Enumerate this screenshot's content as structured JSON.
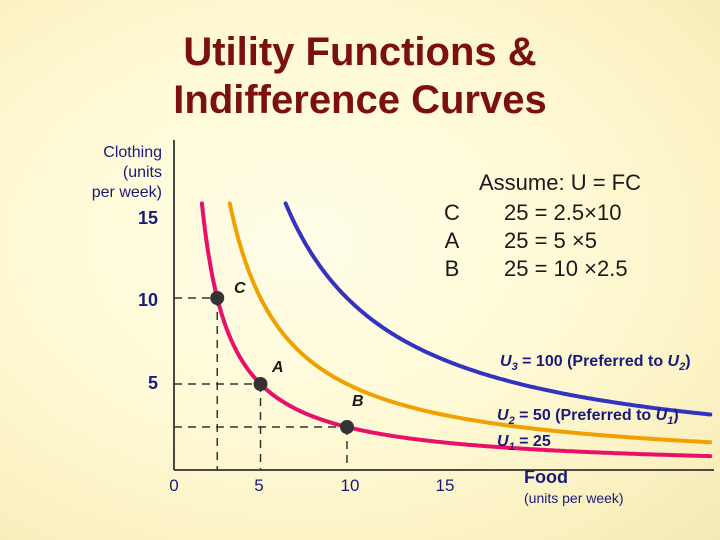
{
  "title": {
    "line1": "Utility Functions &",
    "line2": "Indifference Curves"
  },
  "axes": {
    "y_label": [
      "Clothing",
      "(units",
      "per week)"
    ],
    "x_label": "Food",
    "x_sublabel": "(units per week)",
    "y_ticks": [
      "15",
      "10",
      "5"
    ],
    "x_ticks": [
      "0",
      "5",
      "10",
      "15"
    ]
  },
  "assumption": {
    "heading": "Assume: U = FC",
    "rows": [
      {
        "point": "C",
        "equation": "25 = 2.5×10"
      },
      {
        "point": "A",
        "equation": "25 = 5 ×5"
      },
      {
        "point": "B",
        "equation": "25 = 10 ×2.5"
      }
    ]
  },
  "points": [
    {
      "label": "C",
      "food": 2.5,
      "clothing": 10
    },
    {
      "label": "A",
      "food": 5,
      "clothing": 5
    },
    {
      "label": "B",
      "food": 10,
      "clothing": 2.5
    }
  ],
  "curves": [
    {
      "id": "U1",
      "utility": 25,
      "color": "#e8106a",
      "label": {
        "name": "U",
        "sub": "1",
        "text": " = 25"
      }
    },
    {
      "id": "U2",
      "utility": 50,
      "color": "#f0a000",
      "label": {
        "name": "U",
        "sub": "2",
        "text": " = 50 (Preferred to ",
        "ref": "U",
        "ref_sub": "1",
        "end": ")"
      }
    },
    {
      "id": "U3",
      "utility": 100,
      "color": "#3333c0",
      "label": {
        "name": "U",
        "sub": "3",
        "text": " = 100 (Preferred to ",
        "ref": "U",
        "ref_sub": "2",
        "end": ")"
      }
    }
  ],
  "colors": {
    "title": "#7a1010",
    "axis": "#333333",
    "point": "#333333",
    "label_blue": "#1a1a7a"
  }
}
